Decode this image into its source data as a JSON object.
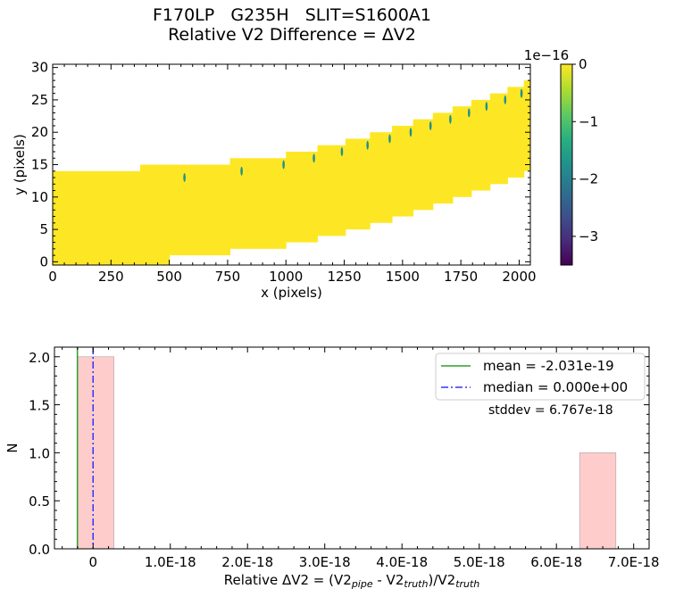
{
  "title_line1": "F170LP   G235H   SLIT=S1600A1",
  "title_line2": "Relative V2 Difference = ΔV2",
  "chart_data": [
    {
      "type": "heatmap",
      "xlabel": "x (pixels)",
      "ylabel": "y (pixels)",
      "xlim": [
        0,
        2048
      ],
      "ylim": [
        -0.5,
        30.5
      ],
      "xticks": [
        0,
        250,
        500,
        750,
        1000,
        1250,
        1500,
        1750,
        2000
      ],
      "yticks": [
        0,
        5,
        10,
        15,
        20,
        25,
        30
      ],
      "fill_color": "#fde725",
      "nonzero_color": "#21908d",
      "trace_segments": [
        {
          "x": [
            0,
            375
          ],
          "y": [
            -0.5,
            14
          ]
        },
        {
          "x": [
            375,
            500
          ],
          "y": [
            -0.5,
            15
          ]
        },
        {
          "x": [
            500,
            760
          ],
          "y": [
            1,
            15
          ]
        },
        {
          "x": [
            760,
            1000
          ],
          "y": [
            2,
            16
          ]
        },
        {
          "x": [
            1000,
            1135
          ],
          "y": [
            3,
            17
          ]
        },
        {
          "x": [
            1135,
            1255
          ],
          "y": [
            4,
            18
          ]
        },
        {
          "x": [
            1255,
            1360
          ],
          "y": [
            5,
            19
          ]
        },
        {
          "x": [
            1360,
            1455
          ],
          "y": [
            6,
            20
          ]
        },
        {
          "x": [
            1455,
            1545
          ],
          "y": [
            7,
            21
          ]
        },
        {
          "x": [
            1545,
            1630
          ],
          "y": [
            8,
            22
          ]
        },
        {
          "x": [
            1630,
            1715
          ],
          "y": [
            9,
            23
          ]
        },
        {
          "x": [
            1715,
            1795
          ],
          "y": [
            10,
            24
          ]
        },
        {
          "x": [
            1795,
            1875
          ],
          "y": [
            11,
            25
          ]
        },
        {
          "x": [
            1875,
            1950
          ],
          "y": [
            12,
            26
          ]
        },
        {
          "x": [
            1950,
            2020
          ],
          "y": [
            13,
            27
          ]
        },
        {
          "x": [
            2020,
            2048
          ],
          "y": [
            14,
            28
          ]
        }
      ],
      "nonzero_pixels": [
        {
          "x": 565,
          "y": 13
        },
        {
          "x": 810,
          "y": 14
        },
        {
          "x": 990,
          "y": 15
        },
        {
          "x": 1120,
          "y": 16
        },
        {
          "x": 1240,
          "y": 17
        },
        {
          "x": 1350,
          "y": 18
        },
        {
          "x": 1445,
          "y": 19
        },
        {
          "x": 1535,
          "y": 20
        },
        {
          "x": 1620,
          "y": 21
        },
        {
          "x": 1705,
          "y": 22
        },
        {
          "x": 1785,
          "y": 23
        },
        {
          "x": 1860,
          "y": 24
        },
        {
          "x": 1940,
          "y": 25
        },
        {
          "x": 2010,
          "y": 26
        }
      ],
      "colorbar": {
        "range": [
          -3.5e-16,
          0
        ],
        "ticks": [
          0,
          -1,
          -2,
          -3
        ],
        "tick_labels": [
          "0",
          "−1",
          "−2",
          "−3"
        ],
        "offset_label": "1e−16",
        "colormap": "viridis"
      }
    },
    {
      "type": "bar",
      "xlabel_parts": [
        "Relative ΔV2 = (V2",
        "pipe",
        " - V2",
        "truth",
        ")/V2",
        "truth"
      ],
      "ylabel": "N",
      "xlim": [
        -5e-19,
        7.2e-18
      ],
      "ylim": [
        0,
        2.1
      ],
      "xticks": [
        0,
        1e-18,
        2e-18,
        3e-18,
        4e-18,
        5e-18,
        6e-18,
        7e-18
      ],
      "xtick_labels": [
        "0",
        "1.0E-18",
        "2.0E-18",
        "3.0E-18",
        "4.0E-18",
        "5.0E-18",
        "6.0E-18",
        "7.0E-18"
      ],
      "yticks": [
        0,
        0.5,
        1.0,
        1.5,
        2.0
      ],
      "ytick_labels": [
        "0.0",
        "0.5",
        "1.0",
        "1.5",
        "2.0"
      ],
      "bars": [
        {
          "x0": -2e-19,
          "x1": 2.7e-19,
          "value": 2
        },
        {
          "x0": 6.3e-18,
          "x1": 6.77e-18,
          "value": 1
        }
      ],
      "bar_color": "#ffcccc",
      "mean": -2.031e-19,
      "median": 0.0,
      "legend": {
        "location": "upper right",
        "entries": [
          {
            "label": "mean = -2.031e-19",
            "color": "#2ca02c",
            "style": "solid"
          },
          {
            "label": "median = 0.000e+00",
            "color": "#3333ff",
            "style": "dashdot"
          }
        ]
      },
      "annotation": "stddev = 6.767e-18"
    }
  ]
}
